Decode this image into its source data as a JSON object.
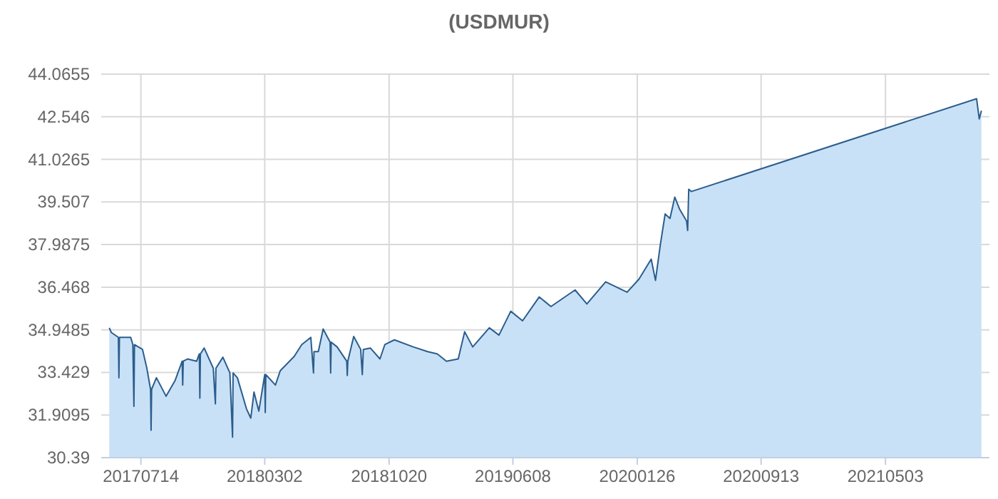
{
  "chart_data": {
    "type": "area",
    "title": "(USDMUR)",
    "x": [
      "2017-05-16",
      "2017-05-20",
      "2017-06-02",
      "2017-06-03",
      "2017-06-04",
      "2017-06-25",
      "2017-06-29",
      "2017-07-01",
      "2017-07-02",
      "2017-07-17",
      "2017-07-25",
      "2017-08-01",
      "2017-08-02",
      "2017-08-03",
      "2017-08-12",
      "2017-08-30",
      "2017-09-16",
      "2017-09-29",
      "2017-09-30",
      "2017-10-01",
      "2017-10-09",
      "2017-10-26",
      "2017-10-31",
      "2017-11-01",
      "2017-11-02",
      "2017-11-09",
      "2017-11-26",
      "2017-11-30",
      "2017-12-01",
      "2017-12-14",
      "2017-12-27",
      "2018-01-01",
      "2018-01-02",
      "2018-01-10",
      "2018-01-27",
      "2018-02-04",
      "2018-02-10",
      "2018-02-19",
      "2018-03-02",
      "2018-03-03",
      "2018-03-04",
      "2018-03-22",
      "2018-03-31",
      "2018-04-26",
      "2018-05-10",
      "2018-05-27",
      "2018-06-01",
      "2018-06-02",
      "2018-06-10",
      "2018-06-19",
      "2018-07-02",
      "2018-07-03",
      "2018-07-04",
      "2018-07-15",
      "2018-08-02",
      "2018-08-03",
      "2018-08-04",
      "2018-08-15",
      "2018-08-28",
      "2018-08-31",
      "2018-09-02",
      "2018-09-15",
      "2018-10-03",
      "2018-10-12",
      "2018-10-30",
      "2018-12-04",
      "2018-12-31",
      "2019-01-18",
      "2019-02-04",
      "2019-02-26",
      "2019-03-10",
      "2019-03-25",
      "2019-04-25",
      "2019-05-13",
      "2019-06-04",
      "2019-06-26",
      "2019-07-27",
      "2019-08-18",
      "2019-10-02",
      "2019-10-24",
      "2019-11-28",
      "2020-01-07",
      "2020-01-29",
      "2020-02-21",
      "2020-02-29",
      "2020-03-09",
      "2020-03-18",
      "2020-03-27",
      "2020-04-05",
      "2020-04-14",
      "2020-04-27",
      "2020-04-29",
      "2020-05-01",
      "2020-05-06",
      "2021-10-20",
      "2021-10-25",
      "2021-10-29"
    ],
    "series": [
      {
        "color": "#2b5d8c",
        "values": [
          35.02,
          34.85,
          34.68,
          33.24,
          34.68,
          34.68,
          34.42,
          32.22,
          34.42,
          34.25,
          33.59,
          32.83,
          31.37,
          32.83,
          33.24,
          32.58,
          33.15,
          33.83,
          32.98,
          33.83,
          33.91,
          33.83,
          34.09,
          32.51,
          34.09,
          34.3,
          33.58,
          32.31,
          33.58,
          33.97,
          33.41,
          31.12,
          33.41,
          33.24,
          32.13,
          31.8,
          32.73,
          32.05,
          33.35,
          32.0,
          33.35,
          32.98,
          33.49,
          34.0,
          34.42,
          34.68,
          33.41,
          34.17,
          34.17,
          34.98,
          34.51,
          33.41,
          34.51,
          34.34,
          33.83,
          33.32,
          33.83,
          34.71,
          34.25,
          33.35,
          34.25,
          34.3,
          33.91,
          34.42,
          34.59,
          34.34,
          34.17,
          34.09,
          33.83,
          33.91,
          34.88,
          34.34,
          35.02,
          34.76,
          35.61,
          35.27,
          36.12,
          35.78,
          36.37,
          35.87,
          36.66,
          36.29,
          36.75,
          37.47,
          36.71,
          37.98,
          39.08,
          38.92,
          39.68,
          39.25,
          38.83,
          38.49,
          39.96,
          39.88,
          43.19,
          42.47,
          42.76
        ]
      }
    ],
    "xlim": [
      "2017-05-01",
      "2021-11-13"
    ],
    "xticks": [
      {
        "value": "2017-07-14",
        "label": "20170714"
      },
      {
        "value": "2018-03-02",
        "label": "20180302"
      },
      {
        "value": "2018-10-20",
        "label": "20181020"
      },
      {
        "value": "2019-06-08",
        "label": "20190608"
      },
      {
        "value": "2020-01-26",
        "label": "20200126"
      },
      {
        "value": "2020-09-13",
        "label": "20200913"
      },
      {
        "value": "2021-05-03",
        "label": "20210503"
      }
    ],
    "ylim": [
      30.39,
      44.0655
    ],
    "yticks": [
      30.39,
      31.9095,
      33.429,
      34.9485,
      36.468,
      37.9875,
      39.507,
      41.0265,
      42.546,
      44.0655
    ],
    "grid": true
  }
}
